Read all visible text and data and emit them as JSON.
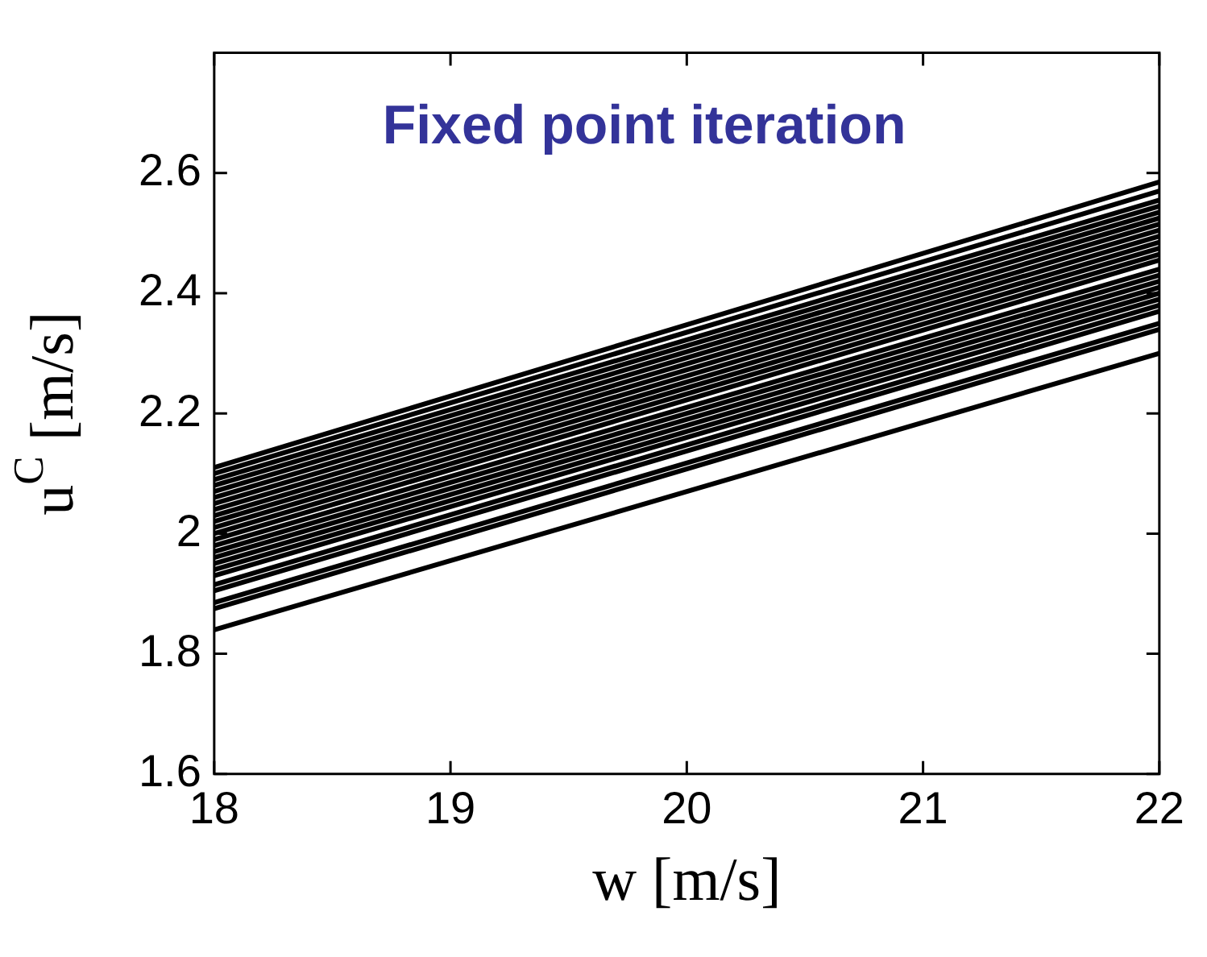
{
  "chart_data": {
    "type": "line",
    "title": "Fixed point iteration",
    "xlabel": "w [m/s]",
    "ylabel": "u$^{C}$ [m/s]",
    "x": [
      18,
      22
    ],
    "xlim": [
      18,
      22
    ],
    "xticks": [
      18,
      19,
      20,
      21,
      22
    ],
    "ylim": [
      1.6,
      2.8
    ],
    "yticks": [
      1.6,
      1.8,
      2,
      2.2,
      2.4,
      2.6
    ],
    "grid": false,
    "legend": false,
    "marker": "none",
    "line_style": "solid",
    "series": [
      {
        "color": "#000000",
        "values": [
          1.84,
          2.3
        ]
      },
      {
        "color": "#000000",
        "values": [
          1.875,
          2.34
        ]
      },
      {
        "color": "#000000",
        "values": [
          1.885,
          2.35
        ]
      },
      {
        "color": "#000000",
        "values": [
          1.905,
          2.37
        ]
      },
      {
        "color": "#000000",
        "values": [
          1.915,
          2.38
        ]
      },
      {
        "color": "#000000",
        "values": [
          1.93,
          2.39
        ]
      },
      {
        "color": "#000000",
        "values": [
          1.94,
          2.4
        ]
      },
      {
        "color": "#000000",
        "values": [
          1.95,
          2.41
        ]
      },
      {
        "color": "#000000",
        "values": [
          1.96,
          2.42
        ]
      },
      {
        "color": "#000000",
        "values": [
          1.97,
          2.43
        ]
      },
      {
        "color": "#000000",
        "values": [
          1.98,
          2.44
        ]
      },
      {
        "color": "#000000",
        "values": [
          1.99,
          2.455
        ]
      },
      {
        "color": "#000000",
        "values": [
          2.0,
          2.465
        ]
      },
      {
        "color": "#000000",
        "values": [
          2.01,
          2.475
        ]
      },
      {
        "color": "#000000",
        "values": [
          2.02,
          2.485
        ]
      },
      {
        "color": "#000000",
        "values": [
          2.03,
          2.495
        ]
      },
      {
        "color": "#000000",
        "values": [
          2.04,
          2.505
        ]
      },
      {
        "color": "#000000",
        "values": [
          2.05,
          2.515
        ]
      },
      {
        "color": "#000000",
        "values": [
          2.06,
          2.525
        ]
      },
      {
        "color": "#000000",
        "values": [
          2.07,
          2.535
        ]
      },
      {
        "color": "#000000",
        "values": [
          2.08,
          2.545
        ]
      },
      {
        "color": "#000000",
        "values": [
          2.09,
          2.555
        ]
      },
      {
        "color": "#000000",
        "values": [
          2.1,
          2.57
        ]
      },
      {
        "color": "#000000",
        "values": [
          2.11,
          2.585
        ]
      }
    ]
  }
}
